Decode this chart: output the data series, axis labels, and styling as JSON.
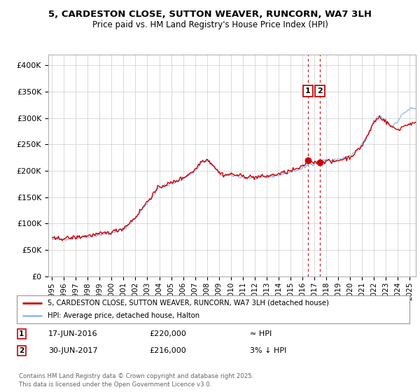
{
  "title1": "5, CARDESTON CLOSE, SUTTON WEAVER, RUNCORN, WA7 3LH",
  "title2": "Price paid vs. HM Land Registry's House Price Index (HPI)",
  "ylim": [
    0,
    420000
  ],
  "yticks": [
    0,
    50000,
    100000,
    150000,
    200000,
    250000,
    300000,
    350000,
    400000
  ],
  "ytick_labels": [
    "£0",
    "£50K",
    "£100K",
    "£150K",
    "£200K",
    "£250K",
    "£300K",
    "£350K",
    "£400K"
  ],
  "xlim_start": 1994.7,
  "xlim_end": 2025.5,
  "xtick_years": [
    1995,
    1996,
    1997,
    1998,
    1999,
    2000,
    2001,
    2002,
    2003,
    2004,
    2005,
    2006,
    2007,
    2008,
    2009,
    2010,
    2011,
    2012,
    2013,
    2014,
    2015,
    2016,
    2017,
    2018,
    2019,
    2020,
    2021,
    2022,
    2023,
    2024,
    2025
  ],
  "line1_color": "#cc0000",
  "line2_color": "#99bbee",
  "marker_color": "#cc0000",
  "vline_color": "#cc0000",
  "annotation_box_color": "#cc0000",
  "legend_label1": "5, CARDESTON CLOSE, SUTTON WEAVER, RUNCORN, WA7 3LH (detached house)",
  "legend_label2": "HPI: Average price, detached house, Halton",
  "sale1_date": 2016.46,
  "sale1_price": 220000,
  "sale2_date": 2017.49,
  "sale2_price": 216000,
  "footer": "Contains HM Land Registry data © Crown copyright and database right 2025.\nThis data is licensed under the Open Government Licence v3.0.",
  "bg_color": "#ffffff",
  "grid_color": "#cccccc"
}
